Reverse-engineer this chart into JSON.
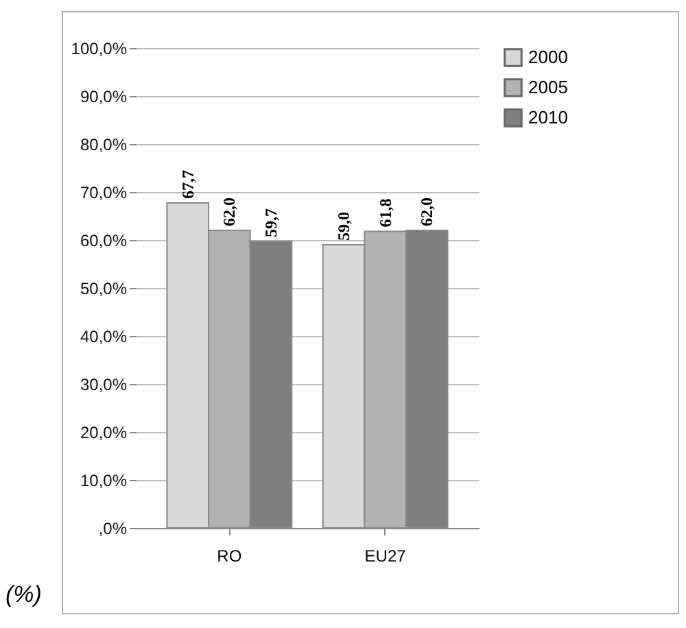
{
  "chart_data": {
    "type": "bar",
    "categories": [
      "RO",
      "EU27"
    ],
    "series": [
      {
        "name": "2000",
        "color": "#d9d9d9",
        "values": [
          67.7,
          59.0
        ],
        "value_labels": [
          "67,7",
          "59,0"
        ]
      },
      {
        "name": "2005",
        "color": "#b2b2b2",
        "values": [
          62.0,
          61.8
        ],
        "value_labels": [
          "62,0",
          "61,8"
        ]
      },
      {
        "name": "2010",
        "color": "#7f7f7f",
        "values": [
          59.7,
          62.0
        ],
        "value_labels": [
          "59,7",
          "62,0"
        ]
      }
    ],
    "ylim": [
      0,
      100
    ],
    "yticks": [
      {
        "value": 0,
        "label": ",0%"
      },
      {
        "value": 10,
        "label": "10,0%"
      },
      {
        "value": 20,
        "label": "20,0%"
      },
      {
        "value": 30,
        "label": "30,0%"
      },
      {
        "value": 40,
        "label": "40,0%"
      },
      {
        "value": 50,
        "label": "50,0%"
      },
      {
        "value": 60,
        "label": "60,0%"
      },
      {
        "value": 70,
        "label": "70,0%"
      },
      {
        "value": 80,
        "label": "80,0%"
      },
      {
        "value": 90,
        "label": "90,0%"
      },
      {
        "value": 100,
        "label": "100,0%"
      }
    ],
    "grid": "y",
    "legend": "right",
    "annotations": [
      "(%)"
    ]
  }
}
